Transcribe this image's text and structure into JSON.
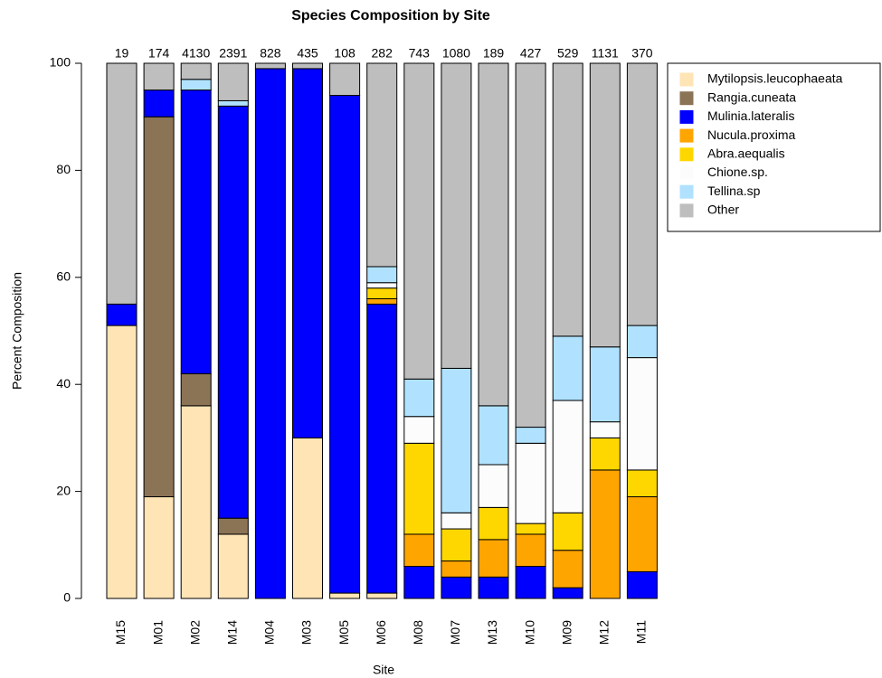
{
  "chart_data": {
    "type": "stacked_bar",
    "title": "Species Composition by Site",
    "x_label": "Site",
    "y_label": "Percent Composition",
    "categories": [
      "M15",
      "M01",
      "M02",
      "M14",
      "M04",
      "M03",
      "M05",
      "M06",
      "M08",
      "M07",
      "M13",
      "M10",
      "M09",
      "M12",
      "M11"
    ],
    "bar_labels": [
      "19",
      "174",
      "4130",
      "2391",
      "828",
      "435",
      "108",
      "282",
      "743",
      "1080",
      "189",
      "427",
      "529",
      "1131",
      "370"
    ],
    "series": [
      {
        "name": "Mytilopsis.leucophaeata",
        "color": "#ffe4b5",
        "values": [
          51,
          19,
          36,
          12,
          0,
          30,
          1,
          1,
          0,
          0,
          0,
          0,
          0,
          0,
          0
        ]
      },
      {
        "name": "Rangia.cuneata",
        "color": "#8b7355",
        "values": [
          0,
          71,
          6,
          3,
          0,
          0,
          0,
          0,
          0,
          0,
          0,
          0,
          0,
          0,
          0
        ]
      },
      {
        "name": "Mulinia.lateralis",
        "color": "#0000ff",
        "values": [
          4,
          5,
          53,
          77,
          99,
          69,
          93,
          54,
          6,
          4,
          4,
          6,
          2,
          0,
          5
        ]
      },
      {
        "name": "Nucula.proxima",
        "color": "#ffa500",
        "values": [
          0,
          0,
          0,
          0,
          0,
          0,
          0,
          1,
          6,
          3,
          7,
          6,
          7,
          24,
          14
        ]
      },
      {
        "name": "Abra.aequalis",
        "color": "#ffd700",
        "values": [
          0,
          0,
          0,
          0,
          0,
          0,
          0,
          2,
          17,
          6,
          6,
          2,
          7,
          6,
          5
        ]
      },
      {
        "name": "Chione.sp.",
        "color": "#fcfcfc",
        "values": [
          0,
          0,
          0,
          0,
          0,
          0,
          0,
          1,
          5,
          3,
          8,
          15,
          21,
          3,
          21
        ]
      },
      {
        "name": "Tellina.sp",
        "color": "#b0e2ff",
        "values": [
          0,
          0,
          2,
          1,
          0,
          0,
          0,
          3,
          7,
          27,
          11,
          3,
          12,
          14,
          6
        ]
      },
      {
        "name": "Other",
        "color": "#bebebe",
        "values": [
          45,
          5,
          3,
          7,
          1,
          1,
          6,
          38,
          59,
          57,
          64,
          68,
          51,
          53,
          49
        ]
      }
    ],
    "ylim": [
      0,
      100
    ],
    "yticks": [
      0,
      20,
      40,
      60,
      80,
      100
    ],
    "legend": "right"
  }
}
